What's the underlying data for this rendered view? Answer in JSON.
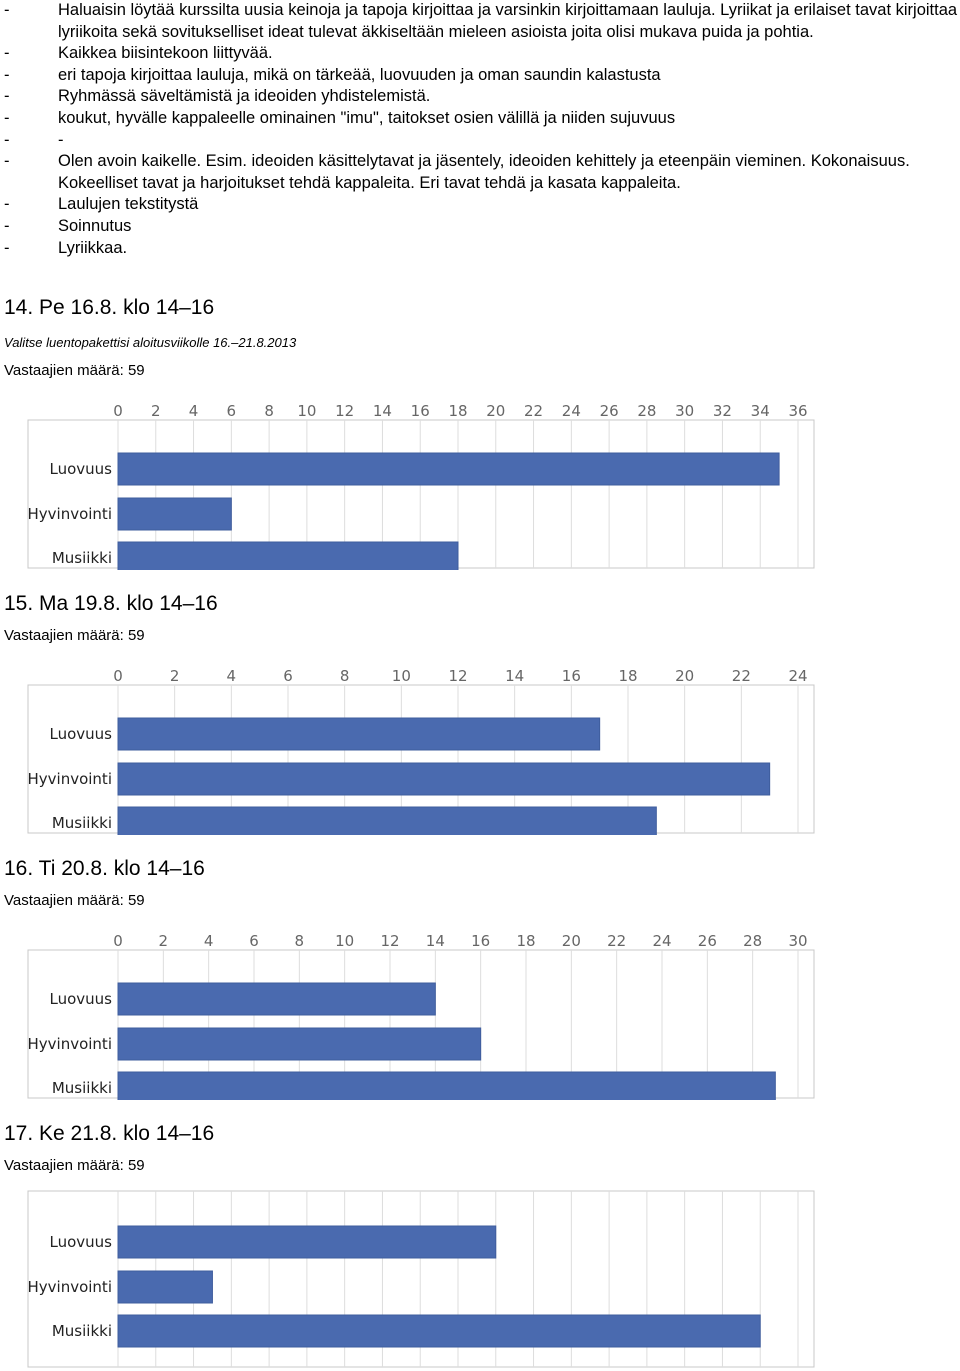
{
  "bullets": [
    {
      "dash": "-",
      "text": "Haluaisin löytää kurssilta uusia keinoja ja tapoja kirjoittaa ja varsinkin kirjoittamaan lauluja. Lyriikat ja erilaiset tavat kirjoittaa lyriikoita sekä sovitukselliset ideat tulevat äkkiseltään mieleen asioista joita olisi mukava puida ja pohtia."
    },
    {
      "dash": "-",
      "text": "Kaikkea biisintekoon liittyvää."
    },
    {
      "dash": "-",
      "text": "eri tapoja kirjoittaa lauluja, mikä on tärkeää, luovuuden ja oman saundin kalastusta"
    },
    {
      "dash": "-",
      "text": "Ryhmässä säveltämistä ja ideoiden yhdistelemistä."
    },
    {
      "dash": "-",
      "text": "koukut, hyvälle kappaleelle ominainen \"imu\", taitokset osien välillä ja niiden sujuvuus"
    },
    {
      "dash": "-",
      "text": "-"
    },
    {
      "dash": "-",
      "text": "Olen avoin kaikelle. Esim. ideoiden käsittelytavat ja jäsentely, ideoiden kehittely ja eteenpäin vieminen. Kokonaisuus. Kokeelliset tavat ja harjoitukset tehdä kappaleita. Eri tavat tehdä ja kasata kappaleita."
    },
    {
      "dash": "-",
      "text": "Laulujen tekstitystä"
    },
    {
      "dash": "-",
      "text": "Soinnutus"
    },
    {
      "dash": "-",
      "text": "Lyriikkaa."
    }
  ],
  "sections": [
    {
      "heading": "14. Pe 16.8. klo 14–16",
      "subtitle": "Valitse luentopakettisi aloitusviikolle 16.–21.8.2013",
      "respondents": "Vastaajien määrä: 59"
    },
    {
      "heading": "15. Ma 19.8. klo 14–16",
      "respondents": "Vastaajien määrä: 59"
    },
    {
      "heading": "16. Ti 20.8. klo 14–16",
      "respondents": "Vastaajien määrä: 59"
    },
    {
      "heading": "17. Ke 21.8. klo 14–16",
      "respondents": "Vastaajien määrä: 59"
    }
  ],
  "colors": {
    "bar": "#4a6aaf",
    "bar_edge": "#3f5d9e",
    "grid": "#dddddd",
    "frame": "#c8c8c8"
  },
  "chart_data": [
    {
      "type": "bar",
      "orientation": "horizontal",
      "categories": [
        "Luovuus",
        "Hyvinvointi",
        "Musiikki"
      ],
      "values": [
        35,
        6,
        18
      ],
      "xlim": [
        0,
        36
      ],
      "ticks": [
        0,
        2,
        4,
        6,
        8,
        10,
        12,
        14,
        16,
        18,
        20,
        22,
        24,
        26,
        28,
        30,
        32,
        34,
        36
      ],
      "grid": true
    },
    {
      "type": "bar",
      "orientation": "horizontal",
      "categories": [
        "Luovuus",
        "Hyvinvointi",
        "Musiikki"
      ],
      "values": [
        17,
        23,
        19
      ],
      "xlim": [
        0,
        24
      ],
      "ticks": [
        0,
        2,
        4,
        6,
        8,
        10,
        12,
        14,
        16,
        18,
        20,
        22,
        24
      ],
      "grid": true
    },
    {
      "type": "bar",
      "orientation": "horizontal",
      "categories": [
        "Luovuus",
        "Hyvinvointi",
        "Musiikki"
      ],
      "values": [
        14,
        16,
        29
      ],
      "xlim": [
        0,
        30
      ],
      "ticks": [
        0,
        2,
        4,
        6,
        8,
        10,
        12,
        14,
        16,
        18,
        20,
        22,
        24,
        26,
        28,
        30
      ],
      "grid": true
    },
    {
      "type": "bar",
      "orientation": "horizontal",
      "categories": [
        "Luovuus",
        "Hyvinvointi",
        "Musiikki"
      ],
      "values": [
        20,
        5,
        34
      ],
      "xlim": [
        0,
        36
      ],
      "ticks": [],
      "grid": true
    }
  ]
}
